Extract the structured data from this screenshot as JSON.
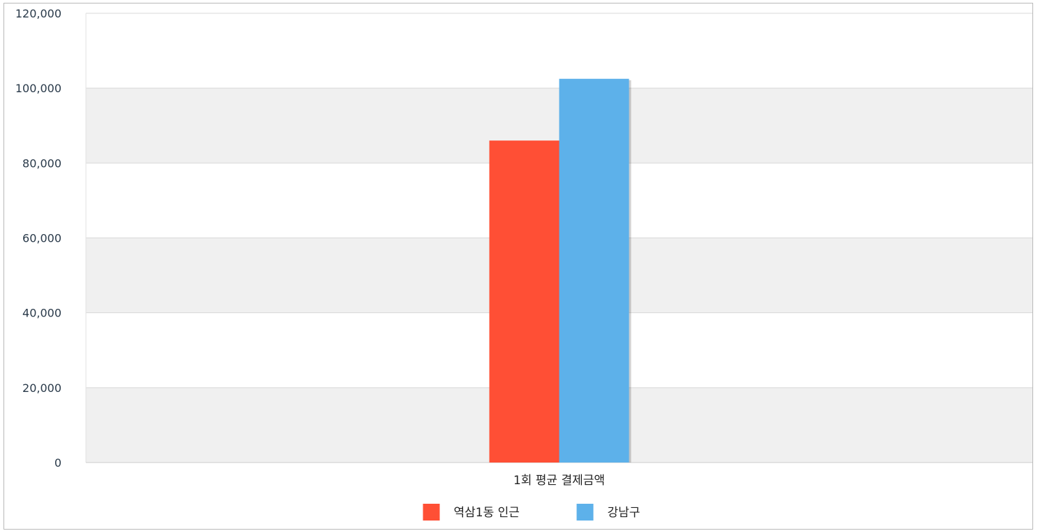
{
  "chart_data": {
    "type": "bar",
    "categories": [
      "1회 평균 결제금액"
    ],
    "series": [
      {
        "name": "역삼1동 인근",
        "color": "#ff4f35",
        "values": [
          86000
        ]
      },
      {
        "name": "강남구",
        "color": "#5db1ea",
        "values": [
          102500
        ]
      }
    ],
    "yticks": [
      "0",
      "20,000",
      "40,000",
      "60,000",
      "80,000",
      "100,000",
      "120,000"
    ],
    "ylim": [
      0,
      120000
    ],
    "title": "",
    "xlabel": "",
    "ylabel": "",
    "legend_position": "bottom-center",
    "grid": true,
    "band_color": "#f0f0f0"
  }
}
